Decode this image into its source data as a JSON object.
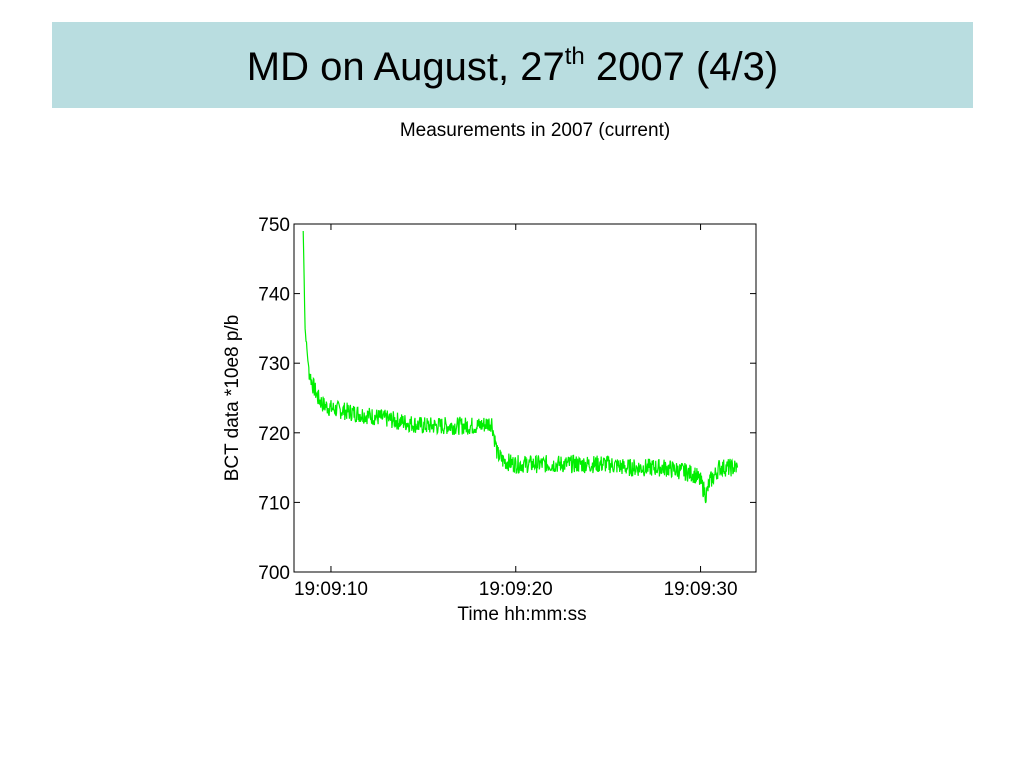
{
  "slide": {
    "title_main": "MD on August, 27",
    "title_sup": "th",
    "title_end": " 2007 (4/3)",
    "subtitle": "Measurements in 2007 (current)"
  },
  "chart_data": {
    "type": "line",
    "title": "",
    "xlabel": "Time hh:mm:ss",
    "ylabel": "BCT data *10e8 p/b",
    "xlim": [
      "19:09:08",
      "19:09:33"
    ],
    "ylim": [
      700,
      750
    ],
    "xticks": [
      "19:09:10",
      "19:09:20",
      "19:09:30"
    ],
    "yticks": [
      "700",
      "710",
      "720",
      "730",
      "740",
      "750"
    ],
    "grid": false,
    "color": "#00ee00",
    "series": [
      {
        "x": [
          "19:09:08.5",
          "19:09:08.6",
          "19:09:08.7",
          "19:09:08.8",
          "19:09:09.0",
          "19:09:09.3",
          "19:09:09.6",
          "19:09:10",
          "19:09:11",
          "19:09:12",
          "19:09:13",
          "19:09:14",
          "19:09:15",
          "19:09:16",
          "19:09:17",
          "19:09:18",
          "19:09:18.7",
          "19:09:19.0",
          "19:09:19.3",
          "19:09:20",
          "19:09:21",
          "19:09:22",
          "19:09:23",
          "19:09:24",
          "19:09:25",
          "19:09:26",
          "19:09:27",
          "19:09:28",
          "19:09:29",
          "19:09:29.7",
          "19:09:30",
          "19:09:30.3",
          "19:09:30.5",
          "19:09:30.8",
          "19:09:31",
          "19:09:31.5",
          "19:09:32"
        ],
        "y": [
          749,
          735,
          732,
          729,
          727,
          725,
          724,
          723.5,
          723,
          722.5,
          722,
          721.5,
          721,
          721,
          721,
          721,
          721.5,
          717,
          716,
          715.5,
          715.5,
          715.5,
          715.5,
          715.5,
          715.5,
          715,
          715,
          715,
          714.5,
          714,
          713,
          711,
          713,
          714,
          715,
          715,
          715
        ]
      }
    ]
  }
}
